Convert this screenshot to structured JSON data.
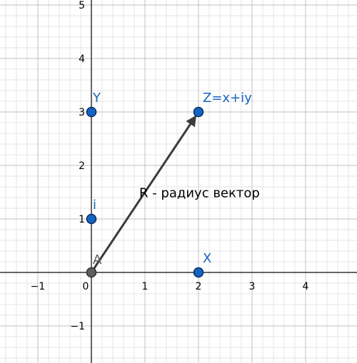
{
  "chart_data": {
    "type": "scatter",
    "title": "",
    "xlabel": "",
    "ylabel": "",
    "xlim": [
      -1.7,
      4.9
    ],
    "ylim": [
      -1.7,
      5.05
    ],
    "grid": true,
    "minor_grid": true,
    "x_ticks": [
      {
        "value": -1,
        "label": "−1"
      },
      {
        "value": 0,
        "label": "0"
      },
      {
        "value": 1,
        "label": "1"
      },
      {
        "value": 2,
        "label": "2"
      },
      {
        "value": 3,
        "label": "3"
      },
      {
        "value": 4,
        "label": "4"
      }
    ],
    "y_ticks": [
      {
        "value": -1,
        "label": "−1"
      },
      {
        "value": 1,
        "label": "1"
      },
      {
        "value": 2,
        "label": "2"
      },
      {
        "value": 3,
        "label": "3"
      },
      {
        "value": 4,
        "label": "4"
      },
      {
        "value": 5,
        "label": "5"
      }
    ],
    "points": [
      {
        "id": "A",
        "label": "A",
        "x": 0,
        "y": 0,
        "color": "#5f5f5f",
        "label_color": "#5f5f5f"
      },
      {
        "id": "i",
        "label": "i",
        "x": 0,
        "y": 1,
        "color": "#1565c0",
        "label_color": "#1565c0"
      },
      {
        "id": "Y",
        "label": "Y",
        "x": 0,
        "y": 3,
        "color": "#1565c0",
        "label_color": "#1565c0"
      },
      {
        "id": "X",
        "label": "X",
        "x": 2,
        "y": 0,
        "color": "#1565c0",
        "label_color": "#1565c0"
      },
      {
        "id": "Z",
        "label": "Z=x+iy",
        "x": 2,
        "y": 3,
        "color": "#1565c0",
        "label_color": "#1565c0"
      }
    ],
    "vectors": [
      {
        "label": "R - радиус вектор",
        "from": [
          0,
          0
        ],
        "to": [
          2,
          3
        ],
        "color": "#3c3c3c"
      }
    ]
  },
  "colors": {
    "major_grid": "#c0c0c0",
    "minor_grid": "#e6e6e6",
    "axis": "#333333",
    "point_outline": "#0a2a66"
  }
}
